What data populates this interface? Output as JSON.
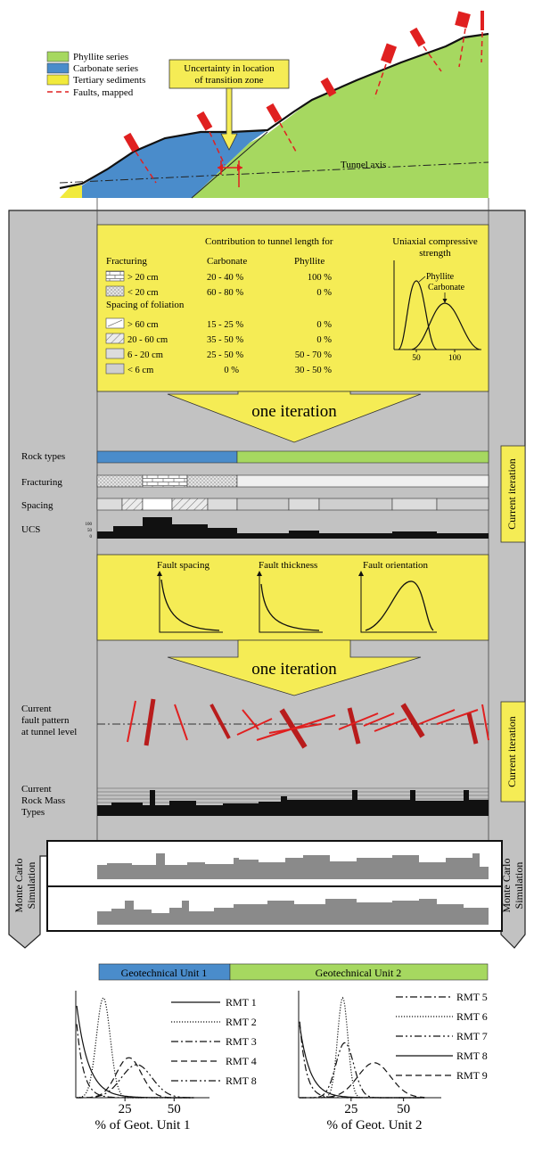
{
  "colors": {
    "phyllite": "#a6d860",
    "carbonate": "#4a8ccb",
    "tertiary": "#f1ea3c",
    "fault": "#e02020",
    "fault_dark": "#b81c1c",
    "yellow_panel": "#f5ec55",
    "grey_panel": "#c2c2c2",
    "dark_bar": "#111111",
    "mc_bar": "#8a8a8a"
  },
  "legend": {
    "phyllite": "Phyllite series",
    "carbonate": "Carbonate series",
    "tertiary": "Tertiary sediments",
    "faults": "Faults, mapped"
  },
  "callout": {
    "line1": "Uncertainty in location",
    "line2": "of transition zone"
  },
  "tunnel_axis": "Tunnel axis",
  "table": {
    "header_line": "Contribution to tunnel length for",
    "col_carbonate": "Carbonate",
    "col_phyllite": "Phyllite",
    "fracturing": "Fracturing",
    "spacing_title": "Spacing of foliation",
    "rows": [
      {
        "label": "> 20 cm",
        "carbonate": "20 - 40 %",
        "phyllite": "100 %"
      },
      {
        "label": "< 20 cm",
        "carbonate": "60 - 80 %",
        "phyllite": "0 %"
      },
      {
        "label": "> 60 cm",
        "carbonate": "15 - 25 %",
        "phyllite": "0 %"
      },
      {
        "label": "20 - 60 cm",
        "carbonate": "35 - 50 %",
        "phyllite": "0 %"
      },
      {
        "label": "6 - 20 cm",
        "carbonate": "25 - 50 %",
        "phyllite": "50 - 70 %"
      },
      {
        "label": "< 6 cm",
        "carbonate": "0 %",
        "phyllite": "30 - 50 %"
      }
    ],
    "ucs_title1": "Uniaxial compressive",
    "ucs_title2": "strength",
    "ucs_phyllite": "Phyllite",
    "ucs_carbonate": "Carbonate",
    "ucs_tick_50": "50",
    "ucs_tick_100": "100"
  },
  "iteration": "one iteration",
  "rows_labels": {
    "rock_types": "Rock types",
    "fracturing": "Fracturing",
    "spacing": "Spacing",
    "ucs": "UCS",
    "ucs_ticks": [
      "100",
      "50",
      "0"
    ]
  },
  "current_iteration": "Current iteration",
  "fault_panel": {
    "spacing": "Fault spacing",
    "thickness": "Fault thickness",
    "orientation": "Fault orientation"
  },
  "fault_pattern_label": [
    "Current",
    "fault pattern",
    "at tunnel level"
  ],
  "rmt_label": [
    "Current",
    "Rock Mass",
    "Types"
  ],
  "monte_carlo": [
    "Monte Carlo",
    "Simulation"
  ],
  "geot_units": {
    "unit1": "Geotechnical Unit 1",
    "unit2": "Geotechnical Unit 2"
  },
  "chart_data": [
    {
      "type": "line",
      "xlabel": "% of Geot. Unit 1",
      "x_ticks": [
        "25",
        "50"
      ],
      "series": [
        {
          "name": "RMT 1"
        },
        {
          "name": "RMT 2"
        },
        {
          "name": "RMT 3"
        },
        {
          "name": "RMT 4"
        },
        {
          "name": "RMT 8"
        }
      ]
    },
    {
      "type": "line",
      "xlabel": "% of Geot. Unit 2",
      "x_ticks": [
        "25",
        "50"
      ],
      "series": [
        {
          "name": "RMT 5"
        },
        {
          "name": "RMT 6"
        },
        {
          "name": "RMT 7"
        },
        {
          "name": "RMT 8"
        },
        {
          "name": "RMT 9"
        }
      ]
    }
  ]
}
